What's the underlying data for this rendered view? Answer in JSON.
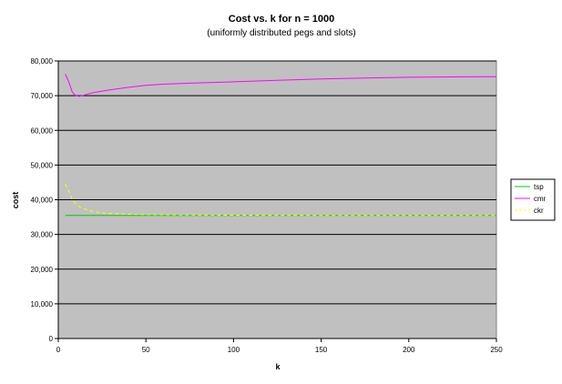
{
  "chart_data": {
    "type": "line",
    "title": "Cost vs. k for n = 1000",
    "subtitle": "(uniformly distributed pegs and slots)",
    "xlabel": "k",
    "ylabel": "cost",
    "xlim": [
      0,
      250
    ],
    "ylim": [
      0,
      80000
    ],
    "x_ticks": [
      "0",
      "50",
      "100",
      "150",
      "200",
      "250"
    ],
    "y_ticks": [
      "0",
      "10,000",
      "20,000",
      "30,000",
      "40,000",
      "50,000",
      "60,000",
      "70,000",
      "80,000"
    ],
    "grid": "horizontal",
    "plot_background": "#C0C0C0",
    "legend_position": "right",
    "series": [
      {
        "name": "tsp",
        "color": "#00CC00",
        "dash": "solid",
        "points": [
          [
            4,
            35500
          ],
          [
            250,
            35500
          ]
        ]
      },
      {
        "name": "cmr",
        "color": "#FF00FF",
        "dash": "solid",
        "points": [
          [
            4,
            76200
          ],
          [
            6,
            74000
          ],
          [
            8,
            71000
          ],
          [
            10,
            70000
          ],
          [
            12,
            69800
          ],
          [
            15,
            70200
          ],
          [
            20,
            70900
          ],
          [
            30,
            71700
          ],
          [
            40,
            72400
          ],
          [
            50,
            73000
          ],
          [
            60,
            73300
          ],
          [
            75,
            73600
          ],
          [
            100,
            74000
          ],
          [
            125,
            74400
          ],
          [
            150,
            74800
          ],
          [
            175,
            75100
          ],
          [
            200,
            75300
          ],
          [
            225,
            75400
          ],
          [
            250,
            75500
          ]
        ]
      },
      {
        "name": "ckr",
        "color": "#FFFF00",
        "dash": "dashed",
        "points": [
          [
            4,
            44500
          ],
          [
            6,
            42500
          ],
          [
            8,
            40000
          ],
          [
            10,
            38800
          ],
          [
            12,
            38000
          ],
          [
            15,
            37300
          ],
          [
            20,
            36600
          ],
          [
            25,
            36200
          ],
          [
            30,
            36000
          ],
          [
            40,
            35800
          ],
          [
            50,
            35700
          ],
          [
            75,
            35600
          ],
          [
            100,
            35550
          ],
          [
            150,
            35500
          ],
          [
            200,
            35500
          ],
          [
            250,
            35500
          ]
        ]
      }
    ]
  }
}
